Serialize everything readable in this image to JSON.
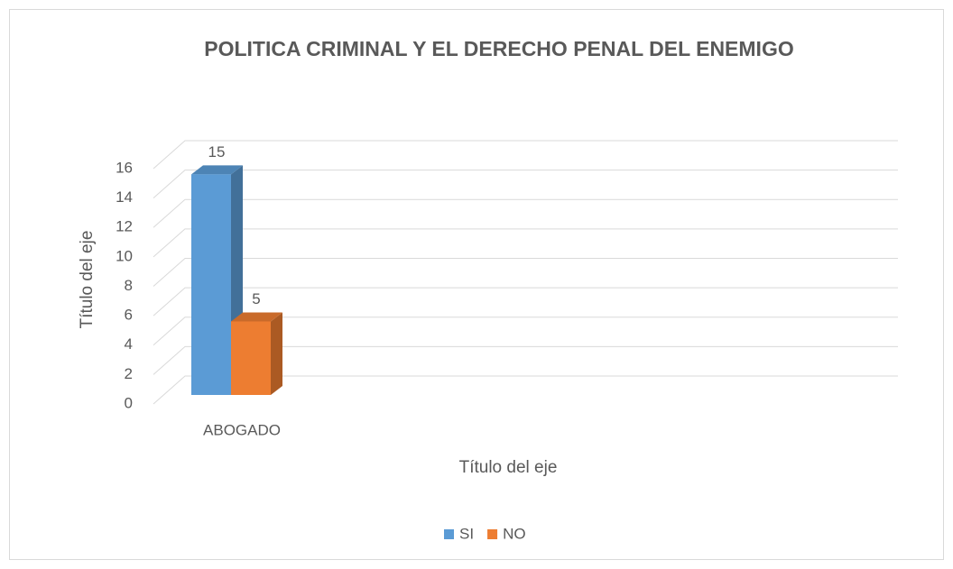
{
  "chart_data": {
    "type": "bar3d",
    "title": "POLITICA CRIMINAL Y EL DERECHO PENAL DEL ENEMIGO",
    "categories": [
      "ABOGADO"
    ],
    "series": [
      {
        "name": "SI",
        "color": "#5b9bd5",
        "values": [
          15
        ]
      },
      {
        "name": "NO",
        "color": "#ed7d31",
        "values": [
          5
        ]
      }
    ],
    "ylim": [
      0,
      16
    ],
    "yticks": [
      0,
      2,
      4,
      6,
      8,
      10,
      12,
      14,
      16
    ],
    "x_label": "Título del eje",
    "y_label": "Título del eje",
    "grid": true,
    "legend": "bottom"
  }
}
